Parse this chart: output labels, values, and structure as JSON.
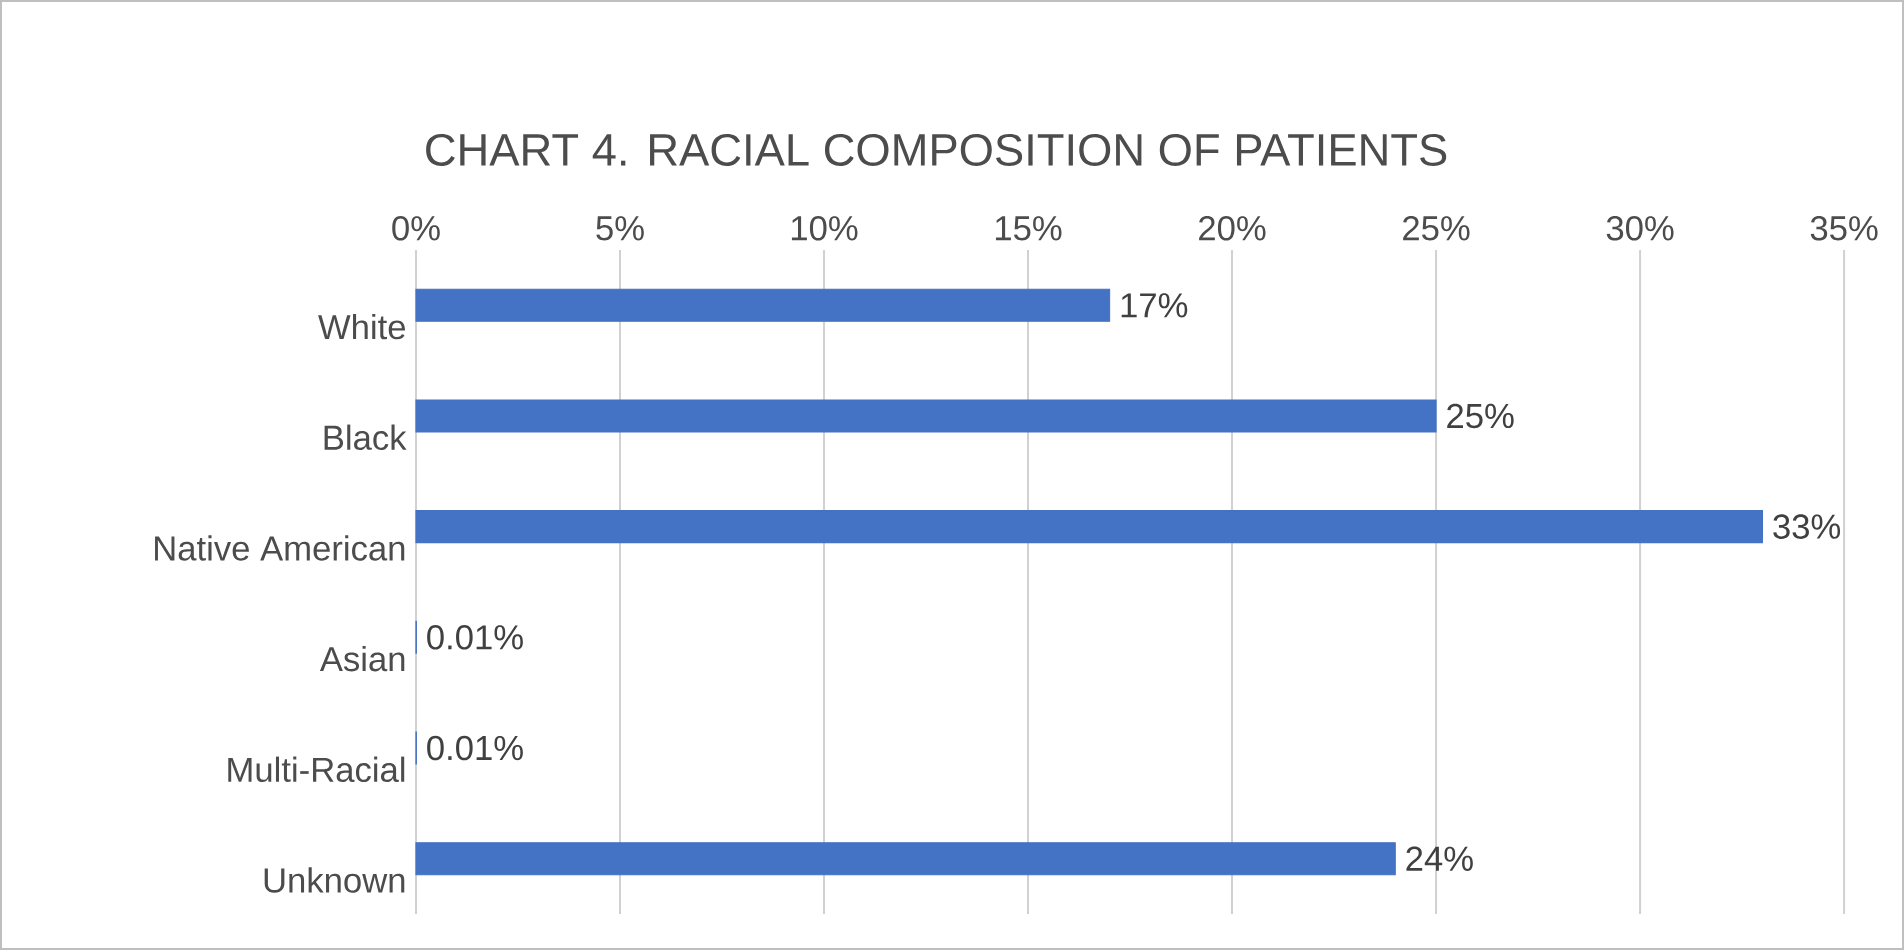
{
  "chart_data": {
    "type": "bar",
    "orientation": "horizontal",
    "title": "CHART 4. RACIAL COMPOSITION OF PATIENTS",
    "categories": [
      "White",
      "Black",
      "Native American",
      "Asian",
      "Multi-Racial",
      "Unknown"
    ],
    "values": [
      17,
      25,
      33,
      0.01,
      0.01,
      24
    ],
    "value_labels": [
      "17%",
      "25%",
      "33%",
      "0.01%",
      "0.01%",
      "24%"
    ],
    "color": "#4472c4",
    "xlim": [
      0,
      35
    ],
    "xticks": [
      {
        "value": 0,
        "label": "0%"
      },
      {
        "value": 5,
        "label": "5%"
      },
      {
        "value": 10,
        "label": "10%"
      },
      {
        "value": 15,
        "label": "15%"
      },
      {
        "value": 20,
        "label": "20%"
      },
      {
        "value": 25,
        "label": "25%"
      },
      {
        "value": 30,
        "label": "30%"
      },
      {
        "value": 35,
        "label": "35%"
      }
    ],
    "grid": "x"
  }
}
